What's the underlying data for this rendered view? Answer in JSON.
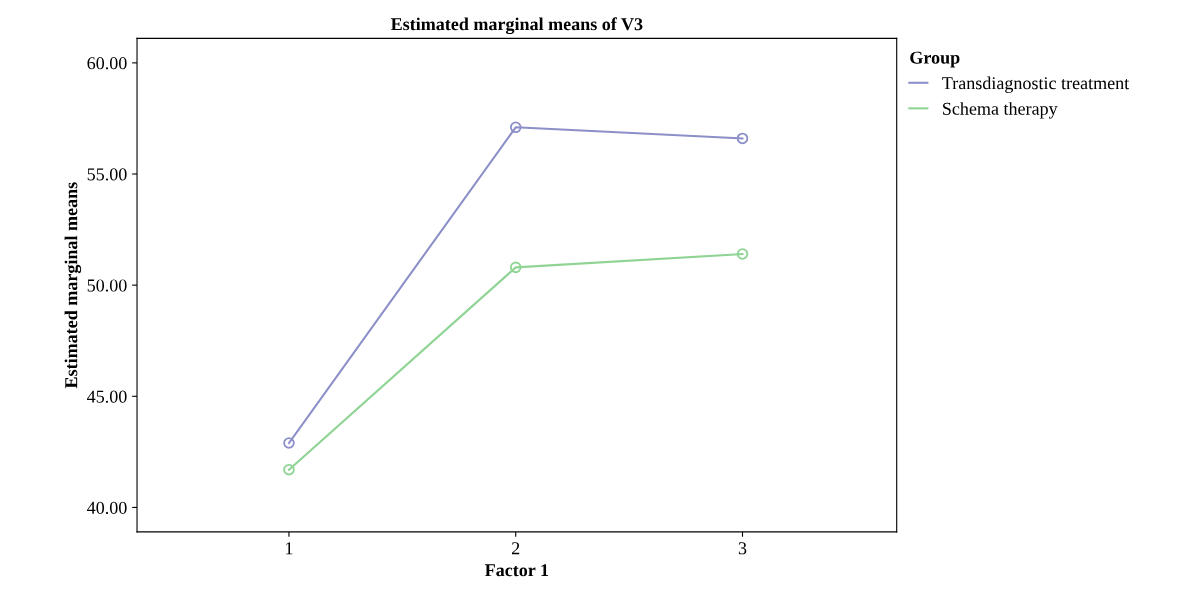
{
  "chart_data": {
    "type": "line",
    "title": "Estimated marginal means of V3",
    "xlabel": "Factor 1",
    "ylabel": "Estimated marginal means",
    "legend_title": "Group",
    "categories": [
      "1",
      "2",
      "3"
    ],
    "series": [
      {
        "name": "Transdiagnostic treatment",
        "color": "#8c8fc8",
        "values": [
          42.9,
          57.1,
          56.6
        ]
      },
      {
        "name": "Schema therapy",
        "color": "#8fd494",
        "values": [
          41.7,
          50.8,
          51.4
        ]
      }
    ],
    "ylim": [
      38.9,
      61.1
    ],
    "yticks": [
      {
        "value": 40,
        "label": "40.00"
      },
      {
        "value": 45,
        "label": "45.00"
      },
      {
        "value": 50,
        "label": "50.00"
      },
      {
        "value": 55,
        "label": "55.00"
      },
      {
        "value": 60,
        "label": "60.00"
      }
    ],
    "marker": "circle",
    "line_style": "solid",
    "grid": false,
    "legend": "top right"
  }
}
